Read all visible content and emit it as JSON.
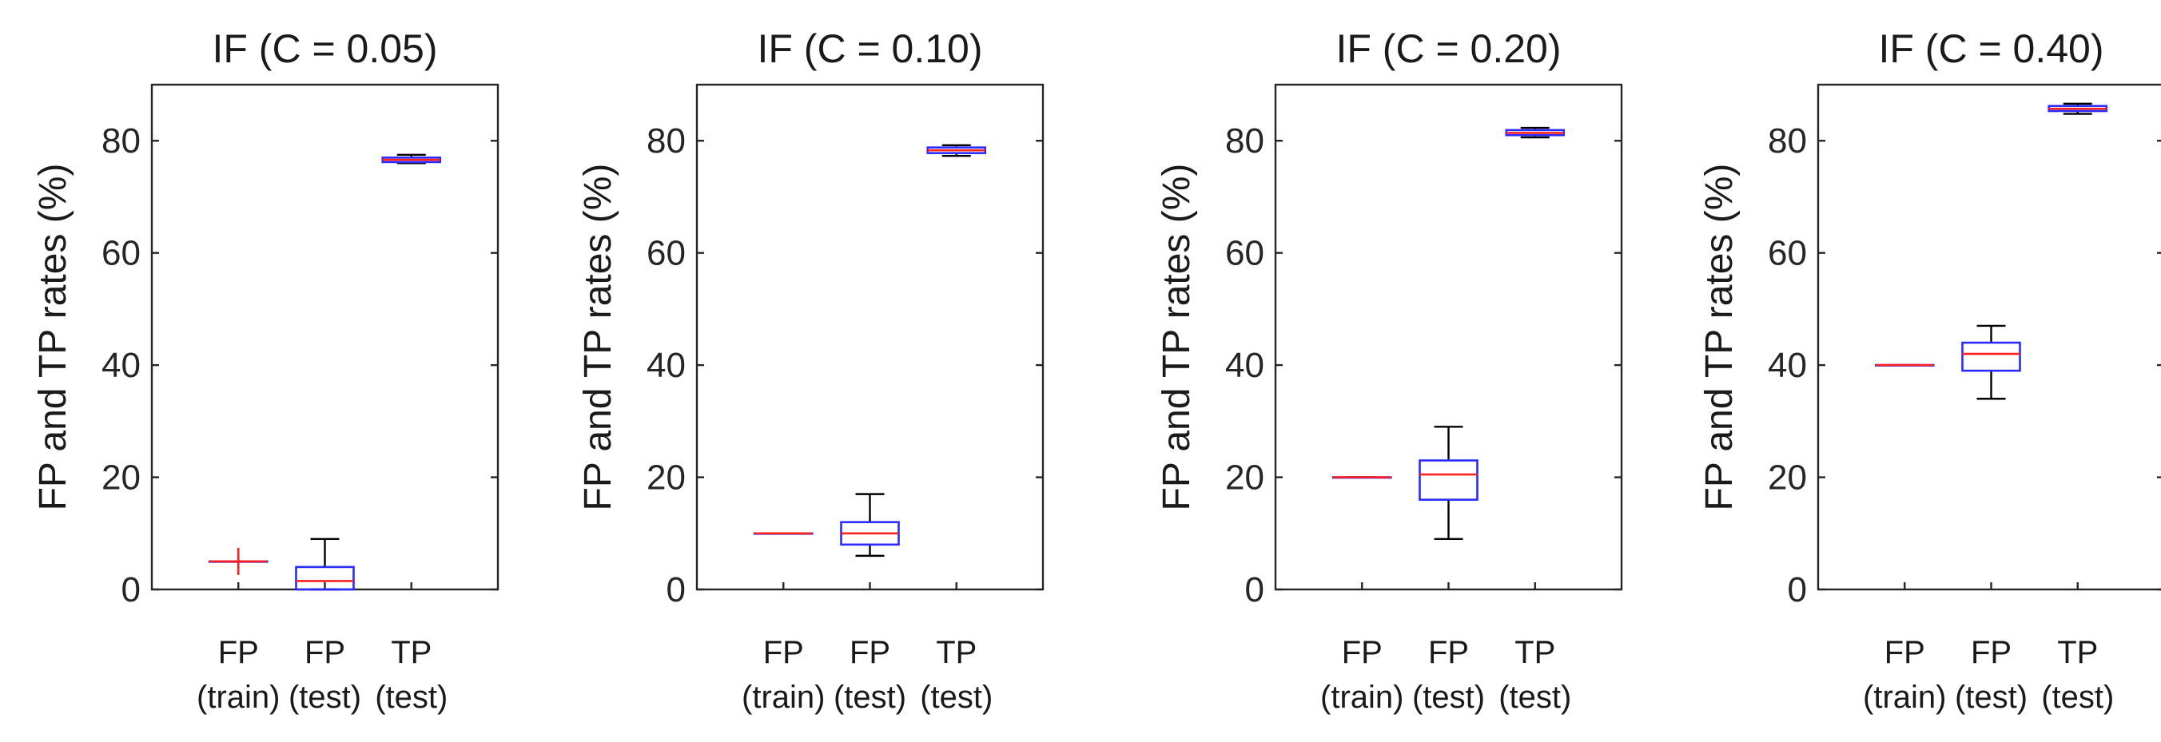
{
  "chart_data": [
    {
      "type": "box",
      "title": "IF (C = 0.05)",
      "ylabel": "FP and TP rates (%)",
      "ylim": [
        0,
        90
      ],
      "yticks": [
        "0",
        "20",
        "40",
        "60",
        "80"
      ],
      "categories": [
        {
          "line1": "FP",
          "line2": "(train)"
        },
        {
          "line1": "FP",
          "line2": "(test)"
        },
        {
          "line1": "TP",
          "line2": "(test)"
        }
      ],
      "boxes": [
        {
          "min": 5,
          "q1": 5,
          "median": 5,
          "q3": 5,
          "max": 5,
          "outliers": [
            5
          ]
        },
        {
          "min": 0,
          "q1": 0,
          "median": 1.5,
          "q3": 4,
          "max": 9,
          "outliers": []
        },
        {
          "min": 76,
          "q1": 76.2,
          "median": 76.6,
          "q3": 77,
          "max": 77.5,
          "outliers": []
        }
      ]
    },
    {
      "type": "box",
      "title": "IF (C = 0.10)",
      "ylabel": "FP and TP rates (%)",
      "ylim": [
        0,
        90
      ],
      "yticks": [
        "0",
        "20",
        "40",
        "60",
        "80"
      ],
      "categories": [
        {
          "line1": "FP",
          "line2": "(train)"
        },
        {
          "line1": "FP",
          "line2": "(test)"
        },
        {
          "line1": "TP",
          "line2": "(test)"
        }
      ],
      "boxes": [
        {
          "min": 10,
          "q1": 10,
          "median": 10,
          "q3": 10,
          "max": 10,
          "outliers": []
        },
        {
          "min": 6,
          "q1": 8,
          "median": 10,
          "q3": 12,
          "max": 17,
          "outliers": []
        },
        {
          "min": 77.3,
          "q1": 77.8,
          "median": 78.3,
          "q3": 78.8,
          "max": 79.2,
          "outliers": []
        }
      ]
    },
    {
      "type": "box",
      "title": "IF (C = 0.20)",
      "ylabel": "FP and TP rates (%)",
      "ylim": [
        0,
        90
      ],
      "yticks": [
        "0",
        "20",
        "40",
        "60",
        "80"
      ],
      "categories": [
        {
          "line1": "FP",
          "line2": "(train)"
        },
        {
          "line1": "FP",
          "line2": "(test)"
        },
        {
          "line1": "TP",
          "line2": "(test)"
        }
      ],
      "boxes": [
        {
          "min": 20,
          "q1": 20,
          "median": 20,
          "q3": 20,
          "max": 20,
          "outliers": []
        },
        {
          "min": 9,
          "q1": 16,
          "median": 20.5,
          "q3": 23,
          "max": 29,
          "outliers": []
        },
        {
          "min": 80.6,
          "q1": 81,
          "median": 81.4,
          "q3": 81.9,
          "max": 82.3,
          "outliers": []
        }
      ]
    },
    {
      "type": "box",
      "title": "IF (C = 0.40)",
      "ylabel": "FP and TP rates (%)",
      "ylim": [
        0,
        90
      ],
      "yticks": [
        "0",
        "20",
        "40",
        "60",
        "80"
      ],
      "categories": [
        {
          "line1": "FP",
          "line2": "(train)"
        },
        {
          "line1": "FP",
          "line2": "(test)"
        },
        {
          "line1": "TP",
          "line2": "(test)"
        }
      ],
      "boxes": [
        {
          "min": 40,
          "q1": 40,
          "median": 40,
          "q3": 40,
          "max": 40,
          "outliers": []
        },
        {
          "min": 34,
          "q1": 39,
          "median": 42,
          "q3": 44,
          "max": 47,
          "outliers": []
        },
        {
          "min": 84.8,
          "q1": 85.3,
          "median": 85.7,
          "q3": 86.2,
          "max": 86.6,
          "outliers": []
        }
      ]
    }
  ]
}
